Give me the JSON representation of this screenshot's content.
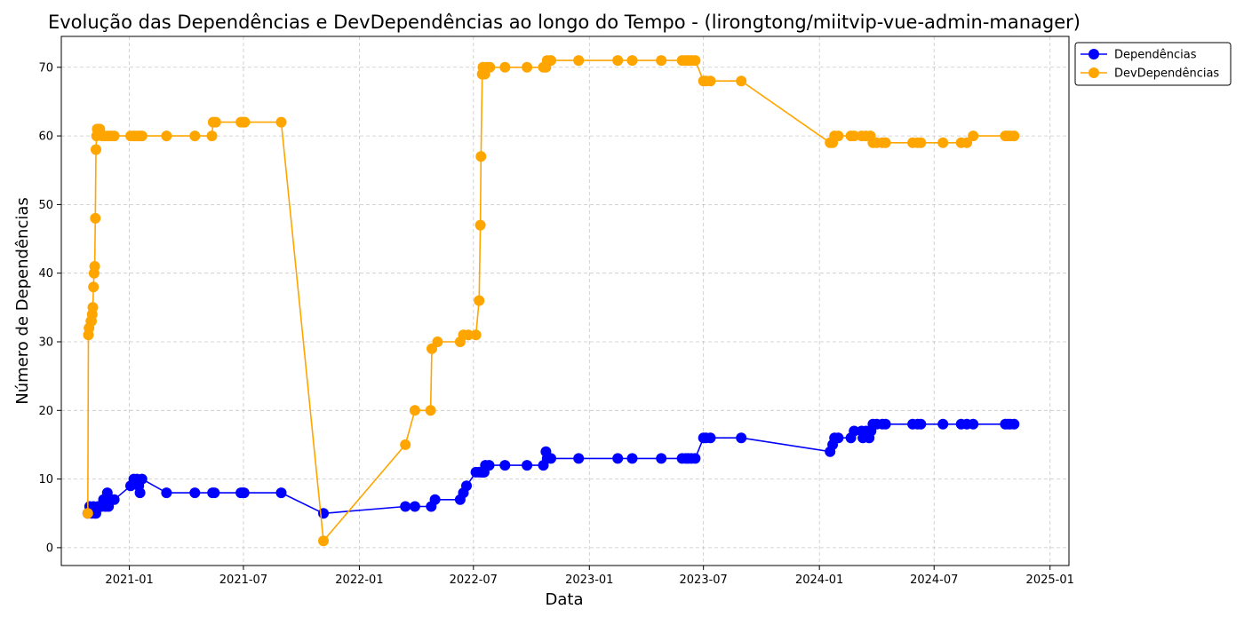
{
  "chart_data": {
    "type": "line",
    "title": "Evolução das Dependências e DevDependências ao longo do Tempo - (lirongtong/miitvip-vue-admin-manager)",
    "xlabel": "Data",
    "ylabel": "Número de Dependências",
    "x_type": "date",
    "xlim": [
      "2020-09-15",
      "2025-01-31"
    ],
    "ylim": [
      -2.6,
      74.5
    ],
    "x_ticks": [
      {
        "value": "2021-01-01",
        "label": "2021-01"
      },
      {
        "value": "2021-07-01",
        "label": "2021-07"
      },
      {
        "value": "2022-01-01",
        "label": "2022-01"
      },
      {
        "value": "2022-07-01",
        "label": "2022-07"
      },
      {
        "value": "2023-01-01",
        "label": "2023-01"
      },
      {
        "value": "2023-07-01",
        "label": "2023-07"
      },
      {
        "value": "2024-01-01",
        "label": "2024-01"
      },
      {
        "value": "2024-07-01",
        "label": "2024-07"
      },
      {
        "value": "2025-01-01",
        "label": "2025-01"
      }
    ],
    "y_ticks": [
      0,
      10,
      20,
      30,
      40,
      50,
      60,
      70
    ],
    "grid": true,
    "legend_position": "upper right, outside plot",
    "series": [
      {
        "name": "Dependências",
        "color": "#0000ff",
        "points": [
          [
            "2020-10-27",
            5
          ],
          [
            "2020-10-30",
            6
          ],
          [
            "2020-11-02",
            5
          ],
          [
            "2020-11-05",
            6
          ],
          [
            "2020-11-07",
            5
          ],
          [
            "2020-11-09",
            5
          ],
          [
            "2020-11-12",
            6
          ],
          [
            "2020-11-18",
            6
          ],
          [
            "2020-11-21",
            7
          ],
          [
            "2020-11-24",
            6
          ],
          [
            "2020-11-27",
            8
          ],
          [
            "2020-11-29",
            6
          ],
          [
            "2020-12-03",
            7
          ],
          [
            "2020-12-08",
            7
          ],
          [
            "2021-01-03",
            9
          ],
          [
            "2021-01-08",
            10
          ],
          [
            "2021-01-13",
            10
          ],
          [
            "2021-01-16",
            9
          ],
          [
            "2021-01-18",
            8
          ],
          [
            "2021-01-21",
            10
          ],
          [
            "2021-03-01",
            8
          ],
          [
            "2021-04-15",
            8
          ],
          [
            "2021-05-13",
            8
          ],
          [
            "2021-05-16",
            8
          ],
          [
            "2021-06-27",
            8
          ],
          [
            "2021-06-30",
            8
          ],
          [
            "2021-07-02",
            8
          ],
          [
            "2021-08-30",
            8
          ],
          [
            "2021-11-05",
            5
          ],
          [
            "2022-03-15",
            6
          ],
          [
            "2022-03-30",
            6
          ],
          [
            "2022-04-25",
            6
          ],
          [
            "2022-05-01",
            7
          ],
          [
            "2022-06-10",
            7
          ],
          [
            "2022-06-15",
            8
          ],
          [
            "2022-06-20",
            9
          ],
          [
            "2022-07-05",
            11
          ],
          [
            "2022-07-10",
            11
          ],
          [
            "2022-07-14",
            11
          ],
          [
            "2022-07-16",
            11
          ],
          [
            "2022-07-18",
            11
          ],
          [
            "2022-07-20",
            12
          ],
          [
            "2022-07-26",
            12
          ],
          [
            "2022-08-20",
            12
          ],
          [
            "2022-09-24",
            12
          ],
          [
            "2022-10-20",
            12
          ],
          [
            "2022-10-24",
            14
          ],
          [
            "2022-10-26",
            13
          ],
          [
            "2022-11-01",
            13
          ],
          [
            "2022-12-15",
            13
          ],
          [
            "2023-02-15",
            13
          ],
          [
            "2023-03-10",
            13
          ],
          [
            "2023-04-25",
            13
          ],
          [
            "2023-05-28",
            13
          ],
          [
            "2023-06-03",
            13
          ],
          [
            "2023-06-07",
            13
          ],
          [
            "2023-06-12",
            13
          ],
          [
            "2023-06-18",
            13
          ],
          [
            "2023-07-01",
            16
          ],
          [
            "2023-07-05",
            16
          ],
          [
            "2023-07-12",
            16
          ],
          [
            "2023-08-30",
            16
          ],
          [
            "2024-01-18",
            14
          ],
          [
            "2024-01-22",
            15
          ],
          [
            "2024-01-25",
            16
          ],
          [
            "2024-01-31",
            16
          ],
          [
            "2024-02-20",
            16
          ],
          [
            "2024-02-25",
            17
          ],
          [
            "2024-03-08",
            17
          ],
          [
            "2024-03-10",
            16
          ],
          [
            "2024-03-15",
            17
          ],
          [
            "2024-03-20",
            16
          ],
          [
            "2024-03-23",
            17
          ],
          [
            "2024-03-26",
            18
          ],
          [
            "2024-04-01",
            18
          ],
          [
            "2024-04-10",
            18
          ],
          [
            "2024-04-15",
            18
          ],
          [
            "2024-05-28",
            18
          ],
          [
            "2024-06-05",
            18
          ],
          [
            "2024-06-10",
            18
          ],
          [
            "2024-07-15",
            18
          ],
          [
            "2024-08-13",
            18
          ],
          [
            "2024-08-22",
            18
          ],
          [
            "2024-09-01",
            18
          ],
          [
            "2024-10-22",
            18
          ],
          [
            "2024-10-26",
            18
          ],
          [
            "2024-10-30",
            18
          ],
          [
            "2024-11-05",
            18
          ]
        ]
      },
      {
        "name": "DevDependências",
        "color": "#ffa500",
        "points": [
          [
            "2020-10-27",
            5
          ],
          [
            "2020-10-28",
            31
          ],
          [
            "2020-10-29",
            32
          ],
          [
            "2020-11-01",
            33
          ],
          [
            "2020-11-02",
            33
          ],
          [
            "2020-11-03",
            34
          ],
          [
            "2020-11-04",
            35
          ],
          [
            "2020-11-05",
            38
          ],
          [
            "2020-11-06",
            40
          ],
          [
            "2020-11-07",
            41
          ],
          [
            "2020-11-08",
            48
          ],
          [
            "2020-11-09",
            58
          ],
          [
            "2020-11-10",
            60
          ],
          [
            "2020-11-11",
            61
          ],
          [
            "2020-11-15",
            61
          ],
          [
            "2020-11-19",
            60
          ],
          [
            "2020-11-23",
            60
          ],
          [
            "2020-11-28",
            60
          ],
          [
            "2020-12-03",
            60
          ],
          [
            "2020-12-08",
            60
          ],
          [
            "2021-01-03",
            60
          ],
          [
            "2021-01-08",
            60
          ],
          [
            "2021-01-13",
            60
          ],
          [
            "2021-01-18",
            60
          ],
          [
            "2021-01-21",
            60
          ],
          [
            "2021-03-01",
            60
          ],
          [
            "2021-04-15",
            60
          ],
          [
            "2021-05-12",
            60
          ],
          [
            "2021-05-14",
            62
          ],
          [
            "2021-05-18",
            62
          ],
          [
            "2021-06-27",
            62
          ],
          [
            "2021-06-30",
            62
          ],
          [
            "2021-07-03",
            62
          ],
          [
            "2021-08-30",
            62
          ],
          [
            "2021-11-05",
            1
          ],
          [
            "2022-03-15",
            15
          ],
          [
            "2022-03-30",
            20
          ],
          [
            "2022-04-24",
            20
          ],
          [
            "2022-04-26",
            29
          ],
          [
            "2022-05-05",
            30
          ],
          [
            "2022-06-10",
            30
          ],
          [
            "2022-06-15",
            31
          ],
          [
            "2022-06-23",
            31
          ],
          [
            "2022-07-05",
            31
          ],
          [
            "2022-07-10",
            36
          ],
          [
            "2022-07-12",
            47
          ],
          [
            "2022-07-13",
            57
          ],
          [
            "2022-07-15",
            69
          ],
          [
            "2022-07-16",
            70
          ],
          [
            "2022-07-19",
            69
          ],
          [
            "2022-07-22",
            70
          ],
          [
            "2022-07-27",
            70
          ],
          [
            "2022-08-20",
            70
          ],
          [
            "2022-09-24",
            70
          ],
          [
            "2022-10-20",
            70
          ],
          [
            "2022-10-24",
            70
          ],
          [
            "2022-10-26",
            71
          ],
          [
            "2022-11-01",
            71
          ],
          [
            "2022-12-15",
            71
          ],
          [
            "2023-02-15",
            71
          ],
          [
            "2023-03-10",
            71
          ],
          [
            "2023-04-25",
            71
          ],
          [
            "2023-05-28",
            71
          ],
          [
            "2023-06-03",
            71
          ],
          [
            "2023-06-07",
            71
          ],
          [
            "2023-06-12",
            71
          ],
          [
            "2023-06-18",
            71
          ],
          [
            "2023-07-01",
            68
          ],
          [
            "2023-07-05",
            68
          ],
          [
            "2023-07-12",
            68
          ],
          [
            "2023-08-30",
            68
          ],
          [
            "2024-01-18",
            59
          ],
          [
            "2024-01-22",
            59
          ],
          [
            "2024-01-25",
            60
          ],
          [
            "2024-01-31",
            60
          ],
          [
            "2024-02-20",
            60
          ],
          [
            "2024-02-25",
            60
          ],
          [
            "2024-03-08",
            60
          ],
          [
            "2024-03-15",
            60
          ],
          [
            "2024-03-22",
            60
          ],
          [
            "2024-03-26",
            59
          ],
          [
            "2024-04-01",
            59
          ],
          [
            "2024-04-10",
            59
          ],
          [
            "2024-04-15",
            59
          ],
          [
            "2024-05-28",
            59
          ],
          [
            "2024-06-05",
            59
          ],
          [
            "2024-06-10",
            59
          ],
          [
            "2024-07-15",
            59
          ],
          [
            "2024-08-13",
            59
          ],
          [
            "2024-08-22",
            59
          ],
          [
            "2024-09-01",
            60
          ],
          [
            "2024-10-22",
            60
          ],
          [
            "2024-10-26",
            60
          ],
          [
            "2024-10-30",
            60
          ],
          [
            "2024-11-05",
            60
          ]
        ]
      }
    ]
  }
}
